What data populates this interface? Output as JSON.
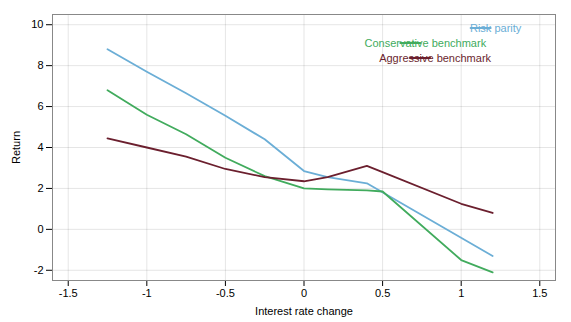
{
  "chart_data": {
    "type": "line",
    "xlabel": "Interest rate change",
    "ylabel": "Return",
    "series": [
      {
        "name": "Risk parity",
        "color": "#6baed6",
        "x": [
          -1.25,
          -1.0,
          -0.75,
          -0.5,
          -0.25,
          0.0,
          0.15,
          0.4,
          1.2
        ],
        "values": [
          8.8,
          7.7,
          6.65,
          5.55,
          4.4,
          2.85,
          2.55,
          2.25,
          -1.3
        ]
      },
      {
        "name": "Conservative benchmark",
        "color": "#41ab5d",
        "x": [
          -1.25,
          -1.0,
          -0.75,
          -0.5,
          -0.25,
          0.0,
          0.15,
          0.4,
          0.5,
          1.0,
          1.2
        ],
        "values": [
          6.8,
          5.6,
          4.65,
          3.5,
          2.6,
          2.0,
          1.95,
          1.9,
          1.85,
          -1.5,
          -2.1
        ]
      },
      {
        "name": "Aggressive benchmark",
        "color": "#6b1f2e",
        "x": [
          -1.25,
          -1.0,
          -0.75,
          -0.5,
          -0.25,
          0.0,
          0.15,
          0.4,
          0.5,
          1.0,
          1.2
        ],
        "values": [
          4.45,
          4.0,
          3.55,
          2.95,
          2.55,
          2.35,
          2.55,
          3.1,
          2.8,
          1.25,
          0.8
        ]
      }
    ],
    "xlim": [
      -1.6,
      1.6
    ],
    "ylim": [
      -2.5,
      10.5
    ],
    "xticks": [
      -1.5,
      -1,
      -0.5,
      0,
      0.5,
      1,
      1.5
    ],
    "yticks": [
      -2,
      0,
      2,
      4,
      6,
      8,
      10
    ],
    "grid": true,
    "legend": "upper right"
  }
}
